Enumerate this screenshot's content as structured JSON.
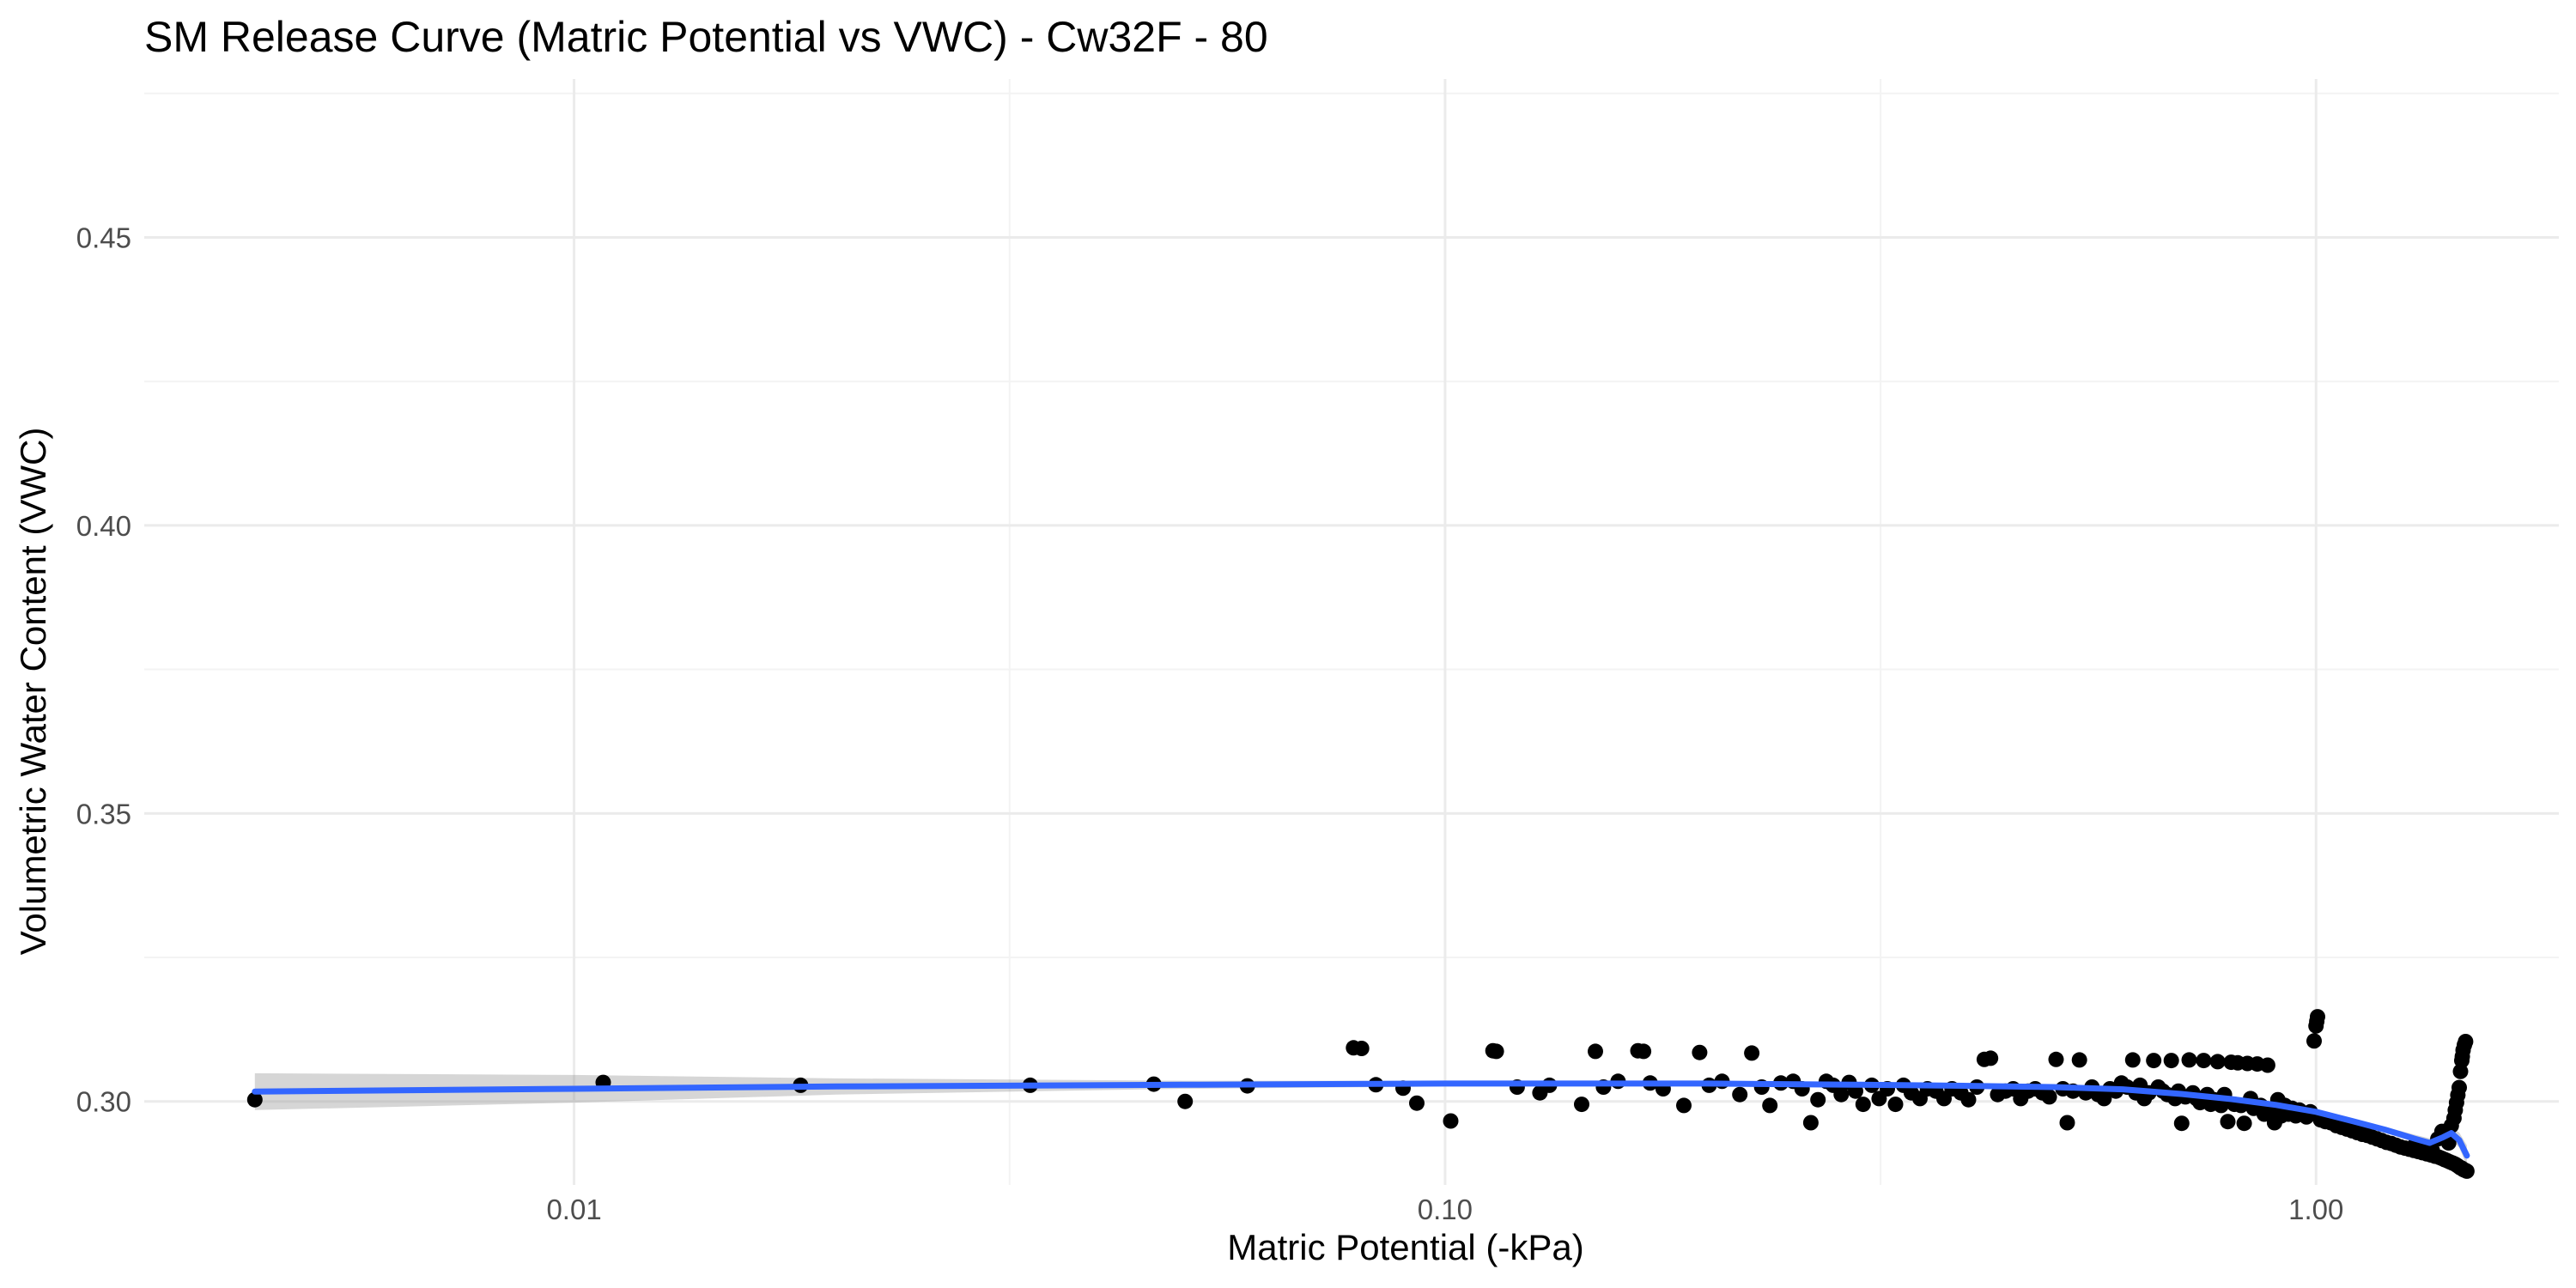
{
  "chart_data": {
    "type": "scatter",
    "title": "SM Release Curve (Matric Potential vs VWC) - Cw32F - 80",
    "xlabel": "Matric Potential (-kPa)",
    "ylabel": "Volumetric Water Content (VWC)",
    "x_scale": "log10",
    "xlim": [
      0.00321,
      1.9
    ],
    "ylim": [
      0.2855,
      0.4775
    ],
    "x_ticks": [
      {
        "value": 0.01,
        "label": "0.01"
      },
      {
        "value": 0.1,
        "label": "0.10"
      },
      {
        "value": 1.0,
        "label": "1.00"
      }
    ],
    "y_ticks": [
      {
        "value": 0.3,
        "label": "0.30"
      },
      {
        "value": 0.35,
        "label": "0.35"
      },
      {
        "value": 0.4,
        "label": "0.40"
      },
      {
        "value": 0.45,
        "label": "0.45"
      }
    ],
    "grid": true,
    "colors": {
      "points": "#000000",
      "smooth_line": "#3366ff",
      "ribbon": "#999999"
    },
    "points": [
      [
        0.0043,
        0.3003
      ],
      [
        0.0108,
        0.3033
      ],
      [
        0.0182,
        0.3028
      ],
      [
        0.0334,
        0.3028
      ],
      [
        0.0463,
        0.303
      ],
      [
        0.0503,
        0.3
      ],
      [
        0.0593,
        0.3027
      ],
      [
        0.0785,
        0.3093
      ],
      [
        0.0802,
        0.3092
      ],
      [
        0.0833,
        0.3029
      ],
      [
        0.0895,
        0.3023
      ],
      [
        0.0928,
        0.2997
      ],
      [
        0.1015,
        0.2966
      ],
      [
        0.1135,
        0.3088
      ],
      [
        0.1145,
        0.3087
      ],
      [
        0.121,
        0.3025
      ],
      [
        0.1285,
        0.3015
      ],
      [
        0.1318,
        0.3028
      ],
      [
        0.1435,
        0.2995
      ],
      [
        0.1488,
        0.3087
      ],
      [
        0.152,
        0.3025
      ],
      [
        0.158,
        0.3035
      ],
      [
        0.1665,
        0.3088
      ],
      [
        0.169,
        0.3087
      ],
      [
        0.172,
        0.3032
      ],
      [
        0.178,
        0.3022
      ],
      [
        0.188,
        0.2993
      ],
      [
        0.196,
        0.3085
      ],
      [
        0.201,
        0.3028
      ],
      [
        0.208,
        0.3035
      ],
      [
        0.218,
        0.3012
      ],
      [
        0.225,
        0.3084
      ],
      [
        0.231,
        0.3025
      ],
      [
        0.236,
        0.2993
      ],
      [
        0.243,
        0.3032
      ],
      [
        0.251,
        0.3035
      ],
      [
        0.257,
        0.3022
      ],
      [
        0.263,
        0.2963
      ],
      [
        0.268,
        0.3003
      ],
      [
        0.274,
        0.3035
      ],
      [
        0.279,
        0.3028
      ],
      [
        0.285,
        0.3012
      ],
      [
        0.291,
        0.3033
      ],
      [
        0.296,
        0.3018
      ],
      [
        0.302,
        0.2995
      ],
      [
        0.309,
        0.3028
      ],
      [
        0.315,
        0.3005
      ],
      [
        0.322,
        0.3022
      ],
      [
        0.329,
        0.2995
      ],
      [
        0.336,
        0.3028
      ],
      [
        0.343,
        0.3015
      ],
      [
        0.351,
        0.3005
      ],
      [
        0.358,
        0.3022
      ],
      [
        0.366,
        0.3018
      ],
      [
        0.374,
        0.3005
      ],
      [
        0.382,
        0.3022
      ],
      [
        0.391,
        0.3015
      ],
      [
        0.399,
        0.3003
      ],
      [
        0.408,
        0.3025
      ],
      [
        0.416,
        0.3073
      ],
      [
        0.423,
        0.3075
      ],
      [
        0.431,
        0.3012
      ],
      [
        0.44,
        0.3018
      ],
      [
        0.449,
        0.3022
      ],
      [
        0.458,
        0.3005
      ],
      [
        0.467,
        0.3018
      ],
      [
        0.476,
        0.3022
      ],
      [
        0.485,
        0.3015
      ],
      [
        0.494,
        0.3008
      ],
      [
        0.503,
        0.3073
      ],
      [
        0.512,
        0.3022
      ],
      [
        0.518,
        0.2963
      ],
      [
        0.526,
        0.3018
      ],
      [
        0.535,
        0.3072
      ],
      [
        0.544,
        0.3015
      ],
      [
        0.553,
        0.3025
      ],
      [
        0.562,
        0.3012
      ],
      [
        0.571,
        0.3005
      ],
      [
        0.58,
        0.3022
      ],
      [
        0.589,
        0.3018
      ],
      [
        0.598,
        0.3032
      ],
      [
        0.607,
        0.3025
      ],
      [
        0.616,
        0.3072
      ],
      [
        0.621,
        0.3015
      ],
      [
        0.628,
        0.3028
      ],
      [
        0.635,
        0.3005
      ],
      [
        0.643,
        0.3015
      ],
      [
        0.651,
        0.3071
      ],
      [
        0.659,
        0.3025
      ],
      [
        0.667,
        0.3018
      ],
      [
        0.675,
        0.3012
      ],
      [
        0.682,
        0.3071
      ],
      [
        0.689,
        0.3005
      ],
      [
        0.695,
        0.3018
      ],
      [
        0.701,
        0.2962
      ],
      [
        0.708,
        0.3008
      ],
      [
        0.715,
        0.3072
      ],
      [
        0.722,
        0.3015
      ],
      [
        0.729,
        0.3005
      ],
      [
        0.736,
        0.2998
      ],
      [
        0.743,
        0.3071
      ],
      [
        0.75,
        0.3012
      ],
      [
        0.757,
        0.2995
      ],
      [
        0.764,
        0.3003
      ],
      [
        0.771,
        0.3069
      ],
      [
        0.778,
        0.2993
      ],
      [
        0.785,
        0.3012
      ],
      [
        0.792,
        0.2965
      ],
      [
        0.799,
        0.3068
      ],
      [
        0.806,
        0.2995
      ],
      [
        0.813,
        0.3067
      ],
      [
        0.82,
        0.2993
      ],
      [
        0.827,
        0.2962
      ],
      [
        0.834,
        0.3066
      ],
      [
        0.841,
        0.3005
      ],
      [
        0.848,
        0.2988
      ],
      [
        0.856,
        0.3065
      ],
      [
        0.864,
        0.2993
      ],
      [
        0.872,
        0.2978
      ],
      [
        0.88,
        0.3063
      ],
      [
        0.888,
        0.2985
      ],
      [
        0.896,
        0.2963
      ],
      [
        0.904,
        0.3003
      ],
      [
        0.912,
        0.2975
      ],
      [
        0.921,
        0.2993
      ],
      [
        0.93,
        0.2978
      ],
      [
        0.939,
        0.2988
      ],
      [
        0.948,
        0.2975
      ],
      [
        0.957,
        0.2985
      ],
      [
        0.966,
        0.2978
      ],
      [
        0.975,
        0.2973
      ],
      [
        0.985,
        0.2982
      ],
      [
        0.995,
        0.3105
      ],
      [
        1.0,
        0.3131
      ],
      [
        1.002,
        0.3139
      ],
      [
        1.004,
        0.3147
      ],
      [
        1.012,
        0.2968
      ],
      [
        1.025,
        0.2965
      ],
      [
        1.04,
        0.2963
      ],
      [
        1.055,
        0.2958
      ],
      [
        1.07,
        0.2955
      ],
      [
        1.085,
        0.2952
      ],
      [
        1.1,
        0.2949
      ],
      [
        1.115,
        0.2946
      ],
      [
        1.13,
        0.2943
      ],
      [
        1.145,
        0.2941
      ],
      [
        1.16,
        0.2938
      ],
      [
        1.175,
        0.2935
      ],
      [
        1.19,
        0.2932
      ],
      [
        1.205,
        0.2929
      ],
      [
        1.22,
        0.2927
      ],
      [
        1.235,
        0.2924
      ],
      [
        1.25,
        0.2921
      ],
      [
        1.265,
        0.2919
      ],
      [
        1.28,
        0.2917
      ],
      [
        1.295,
        0.2915
      ],
      [
        1.31,
        0.2913
      ],
      [
        1.325,
        0.2911
      ],
      [
        1.34,
        0.2909
      ],
      [
        1.355,
        0.2907
      ],
      [
        1.37,
        0.2905
      ],
      [
        1.385,
        0.2903
      ],
      [
        1.395,
        0.2901
      ],
      [
        1.405,
        0.2899
      ],
      [
        1.415,
        0.2897
      ],
      [
        1.425,
        0.2895
      ],
      [
        1.435,
        0.2893
      ],
      [
        1.445,
        0.2891
      ],
      [
        1.452,
        0.2889
      ],
      [
        1.458,
        0.2887
      ],
      [
        1.464,
        0.2885
      ],
      [
        1.47,
        0.2884
      ],
      [
        1.475,
        0.2882
      ],
      [
        1.48,
        0.2881
      ],
      [
        1.485,
        0.288
      ],
      [
        1.49,
        0.2879
      ],
      [
        1.3,
        0.2925
      ],
      [
        1.32,
        0.2921
      ],
      [
        1.34,
        0.2918
      ],
      [
        1.36,
        0.2915
      ],
      [
        1.38,
        0.2935
      ],
      [
        1.395,
        0.2948
      ],
      [
        1.41,
        0.2941
      ],
      [
        1.42,
        0.2928
      ],
      [
        1.43,
        0.2958
      ],
      [
        1.44,
        0.2971
      ],
      [
        1.445,
        0.2985
      ],
      [
        1.45,
        0.2998
      ],
      [
        1.455,
        0.3011
      ],
      [
        1.46,
        0.3024
      ],
      [
        1.465,
        0.3052
      ],
      [
        1.47,
        0.3071
      ],
      [
        1.475,
        0.3089
      ],
      [
        1.48,
        0.3098
      ],
      [
        1.485,
        0.3104
      ],
      [
        1.472,
        0.3078
      ]
    ],
    "smooth_line": [
      [
        0.0043,
        0.3017
      ],
      [
        0.01,
        0.3022
      ],
      [
        0.02,
        0.3026
      ],
      [
        0.05,
        0.3029
      ],
      [
        0.1,
        0.3031
      ],
      [
        0.2,
        0.3031
      ],
      [
        0.3,
        0.3029
      ],
      [
        0.4,
        0.3027
      ],
      [
        0.5,
        0.3025
      ],
      [
        0.6,
        0.3021
      ],
      [
        0.7,
        0.3013
      ],
      [
        0.8,
        0.3004
      ],
      [
        0.9,
        0.2994
      ],
      [
        1.0,
        0.2982
      ],
      [
        1.1,
        0.2966
      ],
      [
        1.2,
        0.2951
      ],
      [
        1.3,
        0.2935
      ],
      [
        1.35,
        0.2928
      ],
      [
        1.4,
        0.2938
      ],
      [
        1.43,
        0.2945
      ],
      [
        1.46,
        0.2933
      ],
      [
        1.49,
        0.2906
      ]
    ],
    "ribbon": [
      [
        0.0043,
        0.2985,
        0.3049
      ],
      [
        0.01,
        0.2998,
        0.3046
      ],
      [
        0.02,
        0.3012,
        0.304
      ],
      [
        0.05,
        0.3022,
        0.3036
      ],
      [
        0.1,
        0.3026,
        0.3036
      ],
      [
        0.2,
        0.3027,
        0.3035
      ],
      [
        0.3,
        0.3025,
        0.3033
      ],
      [
        0.4,
        0.3023,
        0.3031
      ],
      [
        0.5,
        0.3021,
        0.3029
      ],
      [
        0.6,
        0.3017,
        0.3025
      ],
      [
        0.7,
        0.3009,
        0.3017
      ],
      [
        0.8,
        0.3,
        0.3008
      ],
      [
        0.9,
        0.299,
        0.2998
      ],
      [
        1.0,
        0.2977,
        0.2987
      ],
      [
        1.1,
        0.2961,
        0.2971
      ],
      [
        1.2,
        0.2946,
        0.2956
      ],
      [
        1.3,
        0.2928,
        0.2942
      ],
      [
        1.35,
        0.292,
        0.2936
      ],
      [
        1.4,
        0.2928,
        0.2948
      ],
      [
        1.43,
        0.2934,
        0.2956
      ],
      [
        1.46,
        0.292,
        0.2946
      ],
      [
        1.49,
        0.2888,
        0.2924
      ]
    ]
  }
}
